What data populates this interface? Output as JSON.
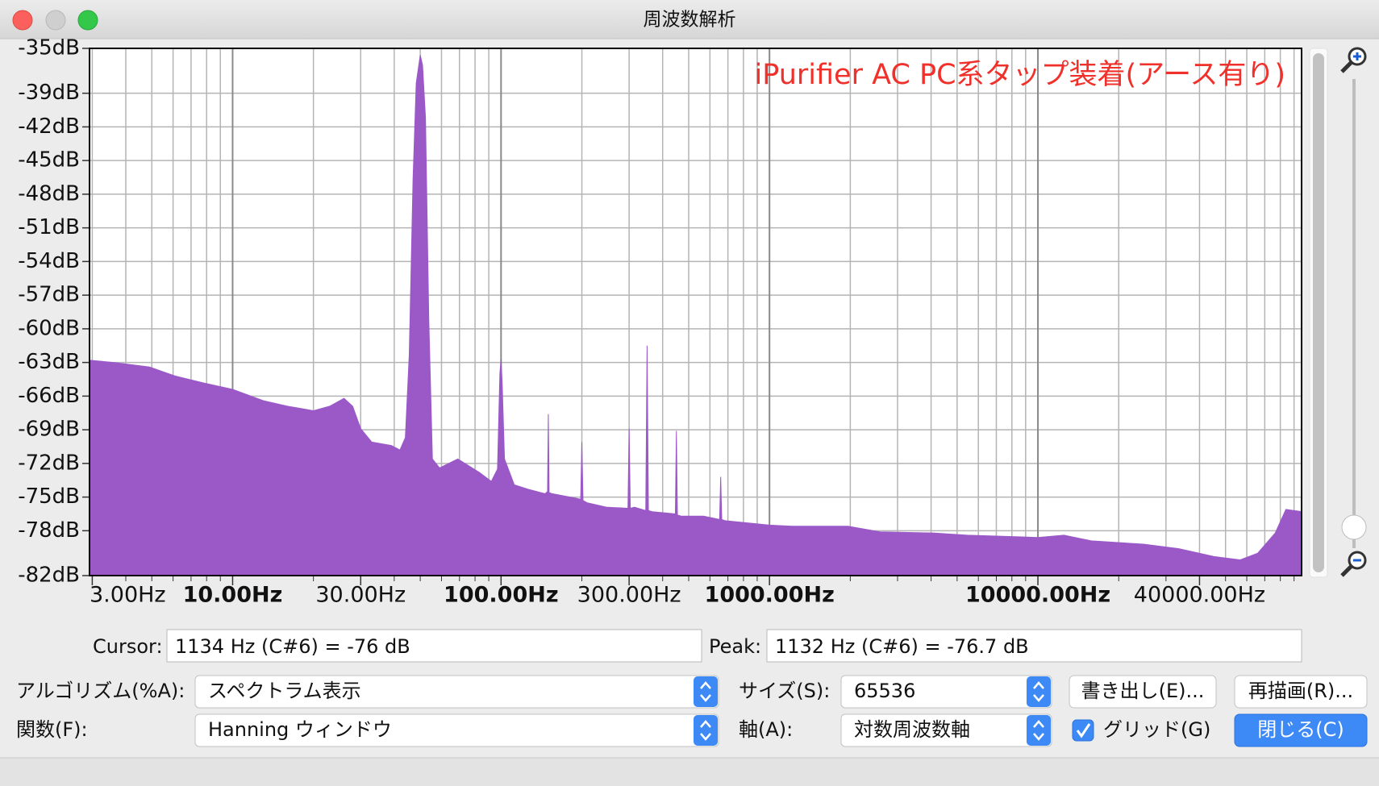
{
  "window": {
    "title": "周波数解析"
  },
  "chart_data": {
    "type": "area",
    "annotation": "iPurifier AC PC系タップ装着(アース有り)",
    "color": "#9b59c8",
    "xscale": "log",
    "grid": true,
    "xlim": [
      2.93,
      96000
    ],
    "ylim": [
      -82,
      -35
    ],
    "xticks": [
      {
        "value": 3,
        "label": "3.00Hz"
      },
      {
        "value": 10,
        "label": "10.00Hz"
      },
      {
        "value": 30,
        "label": "30.00Hz"
      },
      {
        "value": 100,
        "label": "100.00Hz"
      },
      {
        "value": 300,
        "label": "300.00Hz"
      },
      {
        "value": 1000,
        "label": "1000.00Hz"
      },
      {
        "value": 10000,
        "label": "10000.00Hz"
      },
      {
        "value": 40000,
        "label": "40000.00Hz"
      }
    ],
    "yticks": [
      {
        "value": -35,
        "label": "-35dB"
      },
      {
        "value": -39,
        "label": "-39dB"
      },
      {
        "value": -42,
        "label": "-42dB"
      },
      {
        "value": -45,
        "label": "-45dB"
      },
      {
        "value": -48,
        "label": "-48dB"
      },
      {
        "value": -51,
        "label": "-51dB"
      },
      {
        "value": -54,
        "label": "-54dB"
      },
      {
        "value": -57,
        "label": "-57dB"
      },
      {
        "value": -60,
        "label": "-60dB"
      },
      {
        "value": -63,
        "label": "-63dB"
      },
      {
        "value": -66,
        "label": "-66dB"
      },
      {
        "value": -69,
        "label": "-69dB"
      },
      {
        "value": -72,
        "label": "-72dB"
      },
      {
        "value": -75,
        "label": "-75dB"
      },
      {
        "value": -78,
        "label": "-78dB"
      },
      {
        "value": -82,
        "label": "-82dB"
      }
    ],
    "x": [
      2.93,
      3.6,
      4.9,
      6.1,
      7.7,
      10,
      13,
      16,
      20,
      23,
      26,
      28,
      30,
      33,
      39,
      42,
      44,
      45.5,
      47,
      48.3,
      50,
      51,
      52.3,
      53.8,
      55.5,
      59,
      69,
      83,
      92,
      97,
      99,
      100,
      101,
      103,
      112,
      126,
      146,
      149,
      150,
      151,
      155,
      190,
      198,
      200,
      202,
      209,
      247,
      297,
      300,
      303,
      314,
      346,
      350,
      354,
      366,
      446,
      450,
      454,
      469,
      568,
      652,
      658,
      664,
      684,
      1000,
      1210,
      1960,
      2580,
      4060,
      5460,
      10000,
      12500,
      15800,
      24700,
      33500,
      45300,
      56700,
      65900,
      76600,
      83900,
      96000
    ],
    "values": [
      -62.8,
      -63.0,
      -63.4,
      -64.2,
      -64.8,
      -65.4,
      -66.4,
      -66.9,
      -67.3,
      -66.9,
      -66.2,
      -66.9,
      -68.9,
      -70.1,
      -70.4,
      -70.8,
      -69.7,
      -62.3,
      -46.7,
      -38.1,
      -35.6,
      -36.5,
      -41.2,
      -59.1,
      -71.6,
      -72.4,
      -71.6,
      -72.8,
      -73.6,
      -72.5,
      -64,
      -62.7,
      -65,
      -71.6,
      -73.9,
      -74.3,
      -74.7,
      -74.5,
      -67.6,
      -74.6,
      -74.7,
      -75.1,
      -75.2,
      -70.1,
      -75.3,
      -75.5,
      -75.9,
      -76,
      -68.9,
      -76,
      -75.9,
      -76.2,
      -61.5,
      -76.2,
      -76.3,
      -76.5,
      -69.1,
      -76.6,
      -76.7,
      -76.7,
      -77,
      -73.2,
      -77,
      -77.1,
      -77.5,
      -77.6,
      -77.6,
      -78.1,
      -78.2,
      -78.4,
      -78.6,
      -78.4,
      -78.9,
      -79.2,
      -79.6,
      -80.3,
      -80.6,
      -80.0,
      -78.2,
      -76.1,
      -76.3
    ]
  },
  "readout": {
    "cursor_label": "Cursor:",
    "cursor": "1134 Hz (C#6) = -76 dB",
    "peak_label": "Peak:",
    "peak": "1132 Hz (C#6) = -76.7 dB"
  },
  "controls": {
    "algorithm_label": "アルゴリズム(%A):",
    "algorithm": "スペクトラム表示",
    "size_label": "サイズ(S):",
    "size": 65536,
    "export": "書き出し(E)...",
    "replot": "再描画(R)...",
    "function_label": "関数(F):",
    "function": "Hanning ウィンドウ",
    "axis_label": "軸(A):",
    "axis": "対数周波数軸",
    "grid_label": "グリッド(G)",
    "grid_checked": true,
    "close": "閉じる(C)"
  }
}
